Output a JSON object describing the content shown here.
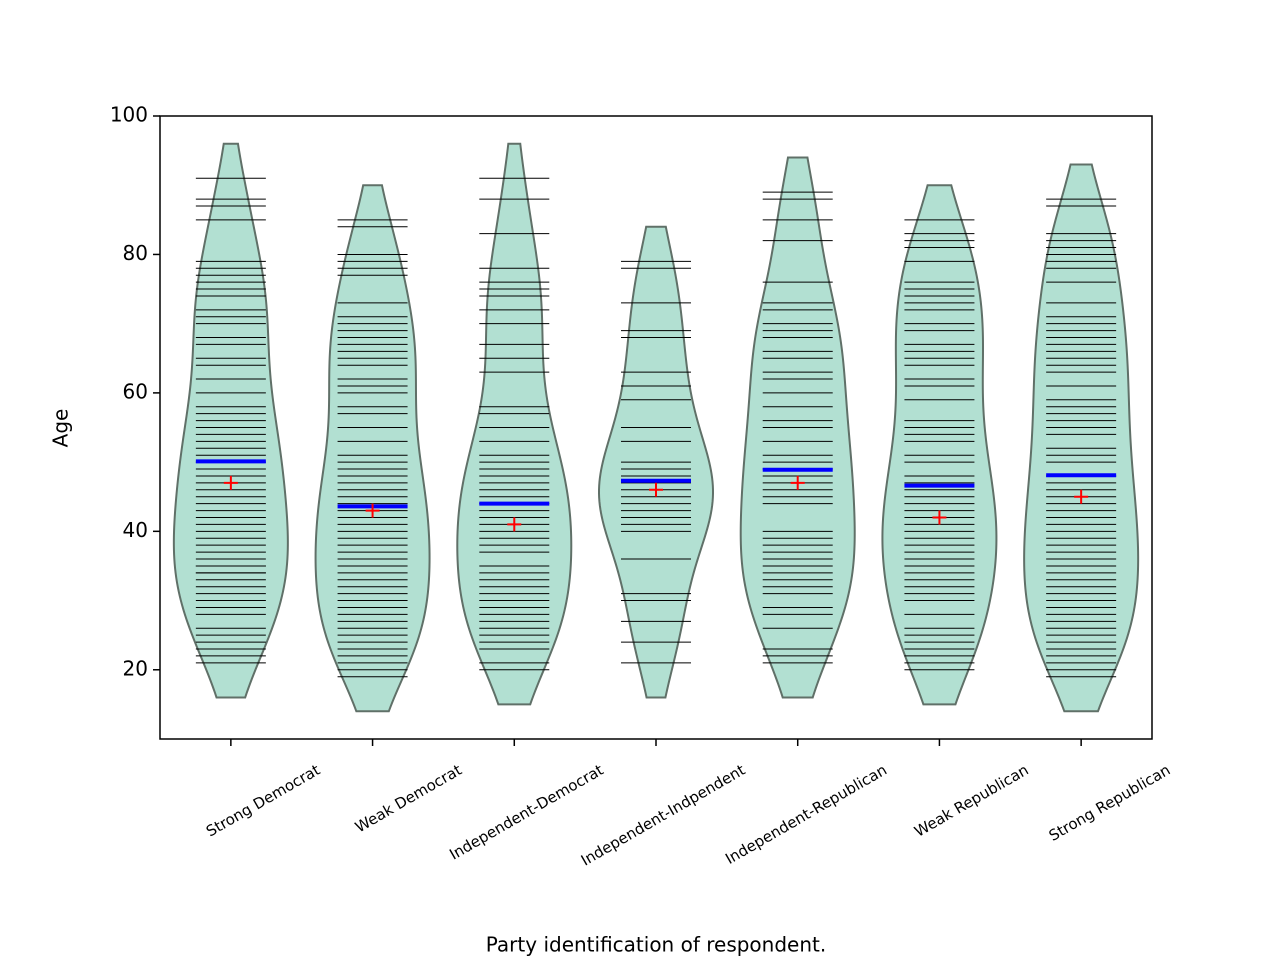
{
  "chart_data": {
    "type": "beanplot",
    "x_label": "Party identification of respondent.",
    "y_label": "Age",
    "categories": [
      "Strong Democrat",
      "Weak Democrat",
      "Independent-Democrat",
      "Independent-Indpendent",
      "Independent-Republican",
      "Weak Republican",
      "Strong Republican"
    ],
    "observations": [
      [
        21,
        22,
        23,
        24,
        25,
        26,
        28,
        29,
        30,
        31,
        32,
        33,
        34,
        34,
        35,
        35,
        36,
        37,
        38,
        39,
        40,
        41,
        42,
        43,
        44,
        45,
        46,
        47,
        48,
        49,
        50,
        51,
        52,
        53,
        54,
        55,
        56,
        57,
        58,
        60,
        62,
        64,
        65,
        67,
        68,
        70,
        71,
        72,
        74,
        75,
        76,
        77,
        78,
        79,
        85,
        87,
        88,
        91
      ],
      [
        19,
        20,
        21,
        22,
        23,
        24,
        25,
        26,
        27,
        28,
        29,
        30,
        31,
        32,
        33,
        34,
        35,
        36,
        37,
        38,
        39,
        40,
        41,
        42,
        43,
        44,
        45,
        46,
        47,
        48,
        49,
        50,
        51,
        53,
        55,
        57,
        58,
        60,
        61,
        62,
        64,
        65,
        66,
        67,
        68,
        69,
        70,
        71,
        73,
        77,
        78,
        79,
        80,
        84,
        85
      ],
      [
        20,
        21,
        23,
        24,
        25,
        26,
        27,
        28,
        29,
        30,
        31,
        32,
        33,
        34,
        35,
        37,
        38,
        39,
        40,
        41,
        42,
        43,
        44,
        45,
        46,
        47,
        48,
        49,
        50,
        51,
        53,
        55,
        57,
        58,
        63,
        65,
        67,
        70,
        72,
        74,
        75,
        76,
        78,
        83,
        88,
        91
      ],
      [
        21,
        24,
        27,
        30,
        31,
        36,
        40,
        41,
        42,
        43,
        44,
        45,
        46,
        47,
        48,
        49,
        50,
        53,
        55,
        59,
        61,
        63,
        68,
        69,
        73,
        78,
        79
      ],
      [
        21,
        22,
        23,
        26,
        28,
        29,
        31,
        32,
        33,
        34,
        35,
        36,
        37,
        38,
        39,
        40,
        44,
        45,
        46,
        47,
        48,
        49,
        50,
        51,
        53,
        55,
        56,
        58,
        60,
        62,
        63,
        65,
        66,
        68,
        69,
        70,
        72,
        73,
        76,
        82,
        85,
        88,
        89
      ],
      [
        20,
        21,
        22,
        23,
        24,
        25,
        26,
        28,
        30,
        31,
        32,
        33,
        34,
        35,
        36,
        37,
        38,
        39,
        40,
        41,
        42,
        43,
        44,
        45,
        46,
        47,
        48,
        50,
        51,
        53,
        54,
        55,
        56,
        59,
        61,
        62,
        64,
        65,
        66,
        67,
        69,
        70,
        72,
        73,
        74,
        75,
        76,
        79,
        81,
        82,
        83,
        85
      ],
      [
        19,
        20,
        21,
        22,
        23,
        24,
        25,
        26,
        27,
        28,
        29,
        30,
        31,
        32,
        33,
        34,
        35,
        36,
        37,
        38,
        39,
        40,
        41,
        42,
        43,
        44,
        45,
        46,
        47,
        48,
        50,
        51,
        52,
        54,
        55,
        56,
        57,
        58,
        59,
        61,
        63,
        64,
        65,
        66,
        67,
        68,
        69,
        70,
        71,
        73,
        76,
        78,
        79,
        80,
        81,
        82,
        83,
        87,
        88
      ]
    ],
    "means": [
      50.1,
      43.6,
      44.0,
      47.3,
      48.9,
      46.6,
      48.1
    ],
    "medians": [
      47,
      43,
      41,
      46,
      47,
      42,
      45
    ],
    "ylim": [
      10,
      100
    ],
    "yticks": [
      20,
      40,
      60,
      80,
      100
    ],
    "violin_color": "#b2e0d2",
    "mean_color": "#0000ff",
    "median_color": "#ff0000",
    "observation_color": "#000000"
  }
}
